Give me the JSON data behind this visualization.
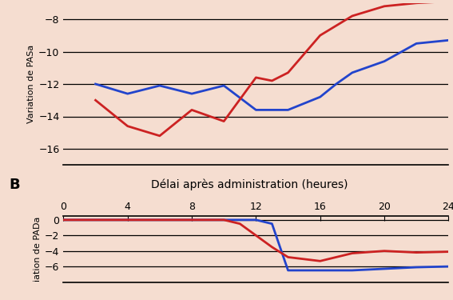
{
  "background_color": "#f5ddd0",
  "top_chart": {
    "ylabel": "Variation de PASa",
    "ylim": [
      -17,
      -7
    ],
    "yticks": [
      -16,
      -14,
      -12,
      -10,
      -8
    ],
    "xlim": [
      0,
      24
    ],
    "blue_x": [
      2,
      4,
      6,
      8,
      10,
      12,
      14,
      16,
      17,
      18,
      20,
      22,
      24
    ],
    "blue_y": [
      -12,
      -12.6,
      -12.1,
      -12.6,
      -12.1,
      -13.6,
      -13.6,
      -12.8,
      -12.0,
      -11.3,
      -10.6,
      -9.5,
      -9.3
    ],
    "red_x": [
      2,
      4,
      6,
      8,
      10,
      12,
      13,
      14,
      16,
      18,
      20,
      22,
      24
    ],
    "red_y": [
      -13.0,
      -14.6,
      -15.2,
      -13.6,
      -14.3,
      -11.6,
      -11.8,
      -11.3,
      -9.0,
      -7.8,
      -7.2,
      -7.0,
      -6.9
    ]
  },
  "label_B": "B",
  "xlabel_center": "Délai après administration (heures)",
  "bottom_chart": {
    "ylabel": "iation de PADa",
    "ylim": [
      -8,
      0.5
    ],
    "yticks": [
      0,
      -2,
      -4,
      -6
    ],
    "xlim": [
      0,
      24
    ],
    "xticks": [
      0,
      4,
      8,
      12,
      16,
      20,
      24
    ],
    "blue_x": [
      0,
      2,
      4,
      6,
      8,
      10,
      12,
      13,
      14,
      16,
      18,
      20,
      22,
      24
    ],
    "blue_y": [
      0,
      0,
      0,
      0,
      0,
      0,
      0,
      -0.5,
      -6.5,
      -6.5,
      -6.5,
      -6.3,
      -6.1,
      -6.0
    ],
    "red_x": [
      0,
      2,
      4,
      6,
      8,
      10,
      11,
      12,
      13,
      14,
      16,
      18,
      20,
      22,
      24
    ],
    "red_y": [
      0,
      0,
      0,
      0,
      0,
      0,
      -0.5,
      -2.0,
      -3.5,
      -4.8,
      -5.3,
      -4.3,
      -4.0,
      -4.2,
      -4.1
    ]
  },
  "line_color_blue": "#2244cc",
  "line_color_red": "#cc2222",
  "linewidth": 2.0,
  "grid_color": "#000000",
  "ylabel_fontsize": 8,
  "tick_fontsize": 9,
  "xlabel_fontsize": 10,
  "label_B_fontsize": 13
}
